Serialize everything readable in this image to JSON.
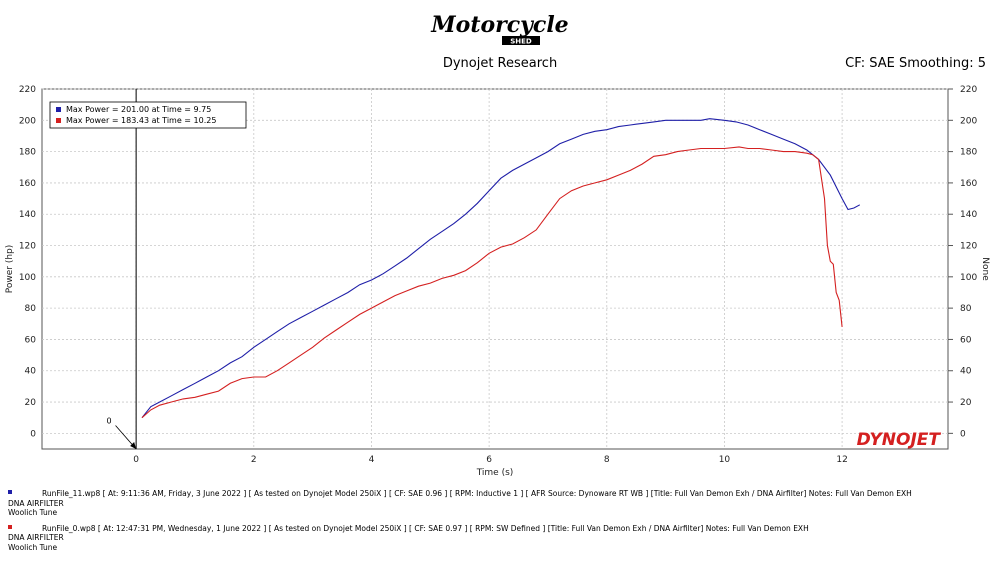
{
  "header": {
    "logo_text": "Motorcycle",
    "logo_subtext": "SHED",
    "title": "Dynojet Research",
    "right_text": "CF: SAE Smoothing: 5"
  },
  "chart_data": {
    "type": "line",
    "xlabel": "Time (s)",
    "ylabel": "Power (hp)",
    "ylabel_right": "None",
    "xlim": [
      -1.6,
      13.8
    ],
    "ylim": [
      -10,
      220
    ],
    "x_ticks": [
      0,
      2,
      4,
      6,
      8,
      10,
      12
    ],
    "y_ticks": [
      0,
      20,
      40,
      60,
      80,
      100,
      120,
      140,
      160,
      180,
      200,
      220
    ],
    "grid": true,
    "marker_line": {
      "x": 0,
      "label": "0"
    },
    "legend": {
      "placement": "top-left",
      "entries": [
        {
          "text": "Max Power = 201.00 at Time = 9.75",
          "color": "#1f1fa8"
        },
        {
          "text": "Max Power = 183.43 at Time = 10.25",
          "color": "#d42020"
        }
      ]
    },
    "brand_watermark": "DYNOJET",
    "series": [
      {
        "color": "#1f1fa8",
        "x": [
          0.1,
          0.25,
          0.4,
          0.6,
          0.8,
          1.0,
          1.2,
          1.4,
          1.6,
          1.8,
          2.0,
          2.2,
          2.4,
          2.6,
          2.8,
          3.0,
          3.2,
          3.4,
          3.6,
          3.8,
          4.0,
          4.2,
          4.4,
          4.6,
          4.8,
          5.0,
          5.2,
          5.4,
          5.6,
          5.8,
          6.0,
          6.2,
          6.4,
          6.6,
          6.8,
          7.0,
          7.2,
          7.4,
          7.6,
          7.8,
          8.0,
          8.2,
          8.4,
          8.6,
          8.8,
          9.0,
          9.2,
          9.4,
          9.6,
          9.75,
          10.0,
          10.2,
          10.4,
          10.6,
          10.8,
          11.0,
          11.2,
          11.4,
          11.6,
          11.8,
          12.0,
          12.1,
          12.2,
          12.3
        ],
        "values": [
          10,
          17,
          20,
          24,
          28,
          32,
          36,
          40,
          45,
          49,
          55,
          60,
          65,
          70,
          74,
          78,
          82,
          86,
          90,
          95,
          98,
          102,
          107,
          112,
          118,
          124,
          129,
          134,
          140,
          147,
          155,
          163,
          168,
          172,
          176,
          180,
          185,
          188,
          191,
          193,
          194,
          196,
          197,
          198,
          199,
          200,
          200,
          200,
          200,
          201,
          200,
          199,
          197,
          194,
          191,
          188,
          185,
          181,
          175,
          165,
          150,
          143,
          144,
          146
        ]
      },
      {
        "color": "#d42020",
        "x": [
          0.1,
          0.25,
          0.4,
          0.6,
          0.8,
          1.0,
          1.2,
          1.4,
          1.6,
          1.8,
          2.0,
          2.2,
          2.4,
          2.6,
          2.8,
          3.0,
          3.2,
          3.4,
          3.6,
          3.8,
          4.0,
          4.2,
          4.4,
          4.6,
          4.8,
          5.0,
          5.2,
          5.4,
          5.6,
          5.8,
          6.0,
          6.2,
          6.4,
          6.6,
          6.8,
          7.0,
          7.2,
          7.4,
          7.6,
          7.8,
          8.0,
          8.2,
          8.4,
          8.6,
          8.8,
          9.0,
          9.2,
          9.4,
          9.6,
          9.8,
          10.0,
          10.25,
          10.4,
          10.6,
          10.8,
          11.0,
          11.2,
          11.4,
          11.5,
          11.6,
          11.7,
          11.75,
          11.8,
          11.85,
          11.9,
          11.95,
          12.0
        ],
        "values": [
          10,
          15,
          18,
          20,
          22,
          23,
          25,
          27,
          32,
          35,
          36,
          36,
          40,
          45,
          50,
          55,
          61,
          66,
          71,
          76,
          80,
          84,
          88,
          91,
          94,
          96,
          99,
          101,
          104,
          109,
          115,
          119,
          121,
          125,
          130,
          140,
          150,
          155,
          158,
          160,
          162,
          165,
          168,
          172,
          177,
          178,
          180,
          181,
          182,
          182,
          182,
          183,
          182,
          182,
          181,
          180,
          180,
          179,
          178,
          175,
          150,
          120,
          110,
          108,
          90,
          85,
          68
        ]
      }
    ]
  },
  "footer": {
    "runs": [
      {
        "color": "#1f1fa8",
        "line1": "RunFile_11.wp8  [  At:  9:11:36 AM, Friday, 3 June 2022  ]  [  As tested on Dynojet Model 250iX  ]  [  CF: SAE 0.96  ]  [  RPM: Inductive 1  ]  [  AFR Source: Dynoware RT WB  ]  [Title: Full Van Demon Exh / DNA Airfilter]   Notes: Full Van Demon EXH",
        "line2": "DNA AIRFILTER",
        "line3": "Woolich Tune"
      },
      {
        "color": "#d42020",
        "line1": "RunFile_0.wp8  [  At:  12:47:31 PM, Wednesday, 1 June 2022  ]  [  As tested on Dynojet Model 250iX  ]  [  CF:  SAE 0.97  ]  [  RPM:  SW Defined  ]  [Title:  Full Van Demon Exh / DNA Airfilter]   Notes: Full Van Demon EXH",
        "line2": "DNA AIRFILTER",
        "line3": "Woolich Tune"
      }
    ]
  }
}
